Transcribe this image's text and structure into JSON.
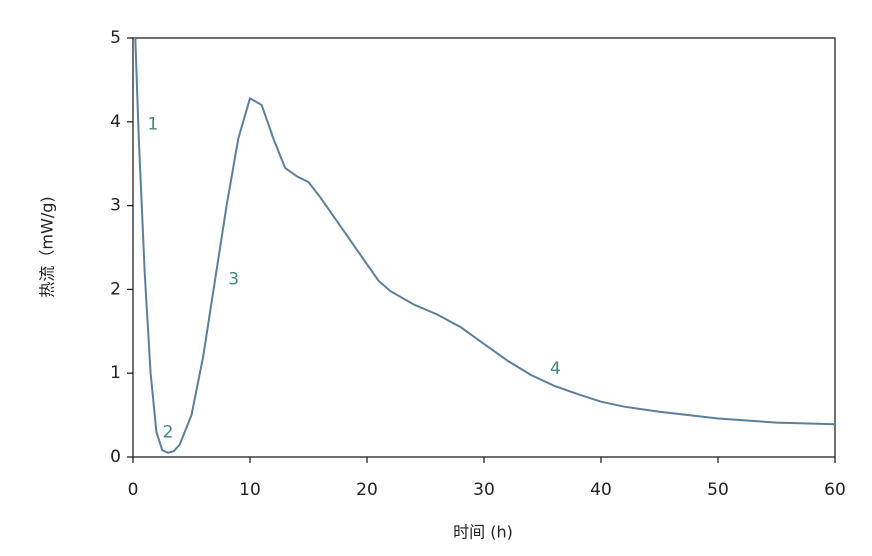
{
  "chart_data": {
    "type": "line",
    "xlabel": "时间 (h)",
    "ylabel": "热流（mW/g)",
    "x": [
      0.2,
      0.5,
      1,
      1.5,
      2,
      2.5,
      3,
      3.5,
      4,
      5,
      6,
      7,
      8,
      9,
      10,
      11,
      12,
      13,
      14,
      15,
      16,
      18,
      20,
      21,
      22,
      24,
      26,
      28,
      30,
      32,
      34,
      36,
      38,
      40,
      42,
      45,
      50,
      55,
      60
    ],
    "values": [
      5,
      3.8,
      2.2,
      1.0,
      0.3,
      0.08,
      0.05,
      0.07,
      0.15,
      0.5,
      1.2,
      2.1,
      3.0,
      3.8,
      4.28,
      4.2,
      3.8,
      3.45,
      3.35,
      3.28,
      3.1,
      2.7,
      2.3,
      2.1,
      1.98,
      1.82,
      1.7,
      1.55,
      1.35,
      1.15,
      0.98,
      0.85,
      0.75,
      0.66,
      0.6,
      0.54,
      0.46,
      0.41,
      0.39
    ],
    "color": "#5b7f9e",
    "xlim": [
      0,
      60
    ],
    "xticks": [
      0,
      10,
      20,
      30,
      40,
      50,
      60
    ],
    "ylim": [
      0,
      5
    ],
    "yticks": [
      0,
      1,
      2,
      3,
      4,
      5
    ],
    "grid": false,
    "annotation_color": "#3f8a7a",
    "annotations": [
      {
        "text": "1",
        "x": 1.7,
        "y": 3.97
      },
      {
        "text": "2",
        "x": 3.0,
        "y": 0.29
      },
      {
        "text": "3",
        "x": 8.6,
        "y": 2.12
      },
      {
        "text": "4",
        "x": 36.1,
        "y": 1.05
      }
    ]
  }
}
